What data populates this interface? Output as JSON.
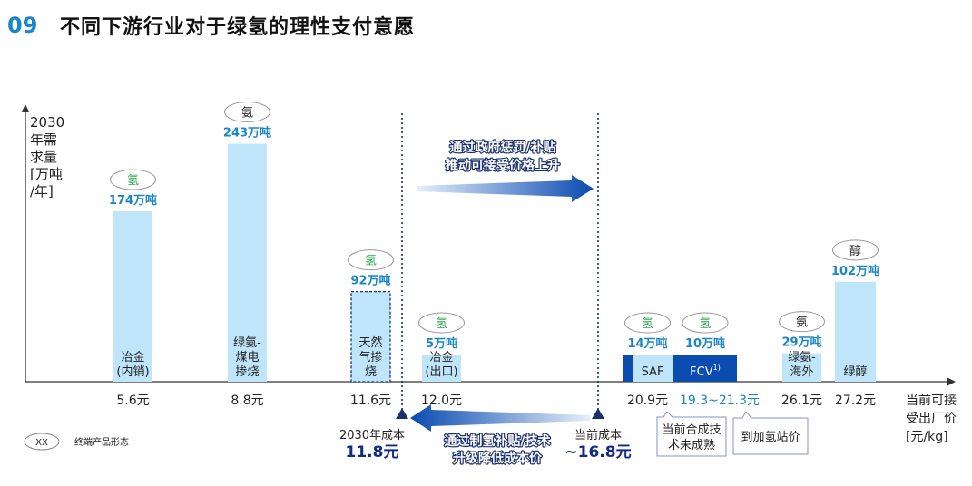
{
  "header": {
    "number": "09",
    "title": "不同下游行业对于绿氢的理性支付意愿"
  },
  "colors": {
    "bar_light": "#bfe5fb",
    "bar_dark": "#0b4cb0",
    "accent_blue": "#1a86c8",
    "green": "#2aa94a",
    "navy": "#132a86"
  },
  "chart_data": {
    "type": "bar",
    "ylabel": [
      "2030",
      "年需",
      "求量",
      "[万吨",
      "/年]"
    ],
    "xlabel": [
      "当前可接",
      "受出厂价",
      "[元/kg]"
    ],
    "bars": [
      {
        "price": 5.6,
        "price_label": "5.6元",
        "demand": 174,
        "demand_label": "174万吨",
        "form": "氢",
        "form_color": "green",
        "label": [
          "冶金",
          "(内销)"
        ],
        "style": "solid"
      },
      {
        "price": 8.8,
        "price_label": "8.8元",
        "demand": 243,
        "demand_label": "243万吨",
        "form": "氨",
        "form_color": "dark",
        "label": [
          "绿氨-",
          "煤电",
          "掺烧"
        ],
        "style": "solid"
      },
      {
        "price": 11.6,
        "price_label": "11.6元",
        "demand": 92,
        "demand_label": "92万吨",
        "form": "氢",
        "form_color": "green",
        "label": [
          "天然",
          "气掺",
          "烧"
        ],
        "style": "dashed"
      },
      {
        "price": 12.0,
        "price_label": "12.0元",
        "demand": 5,
        "demand_label": "5万吨",
        "form": "氢",
        "form_color": "green",
        "label": [
          "冶金",
          "(出口)"
        ],
        "style": "solid"
      },
      {
        "price": 20.9,
        "price_label": "20.9元",
        "demand": 14,
        "demand_label": "14万吨",
        "form": "氢",
        "form_color": "green",
        "label": [
          "SAF"
        ],
        "style": "saf"
      },
      {
        "price_range": [
          19.3,
          21.3
        ],
        "price_label": "19.3~21.3元",
        "demand": 10,
        "demand_label": "10万吨",
        "form": "氢",
        "form_color": "green",
        "label": [
          "FCV"
        ],
        "label_sup": "1)",
        "style": "fcv"
      },
      {
        "price": 26.1,
        "price_label": "26.1元",
        "demand": 29,
        "demand_label": "29万吨",
        "form": "氨",
        "form_color": "dark",
        "label": [
          "绿氨-",
          "海外"
        ],
        "style": "solid"
      },
      {
        "price": 27.2,
        "price_label": "27.2元",
        "demand": 102,
        "demand_label": "102万吨",
        "form": "醇",
        "form_color": "dark",
        "label": [
          "绿醇"
        ],
        "style": "solid"
      }
    ],
    "markers": [
      {
        "name": "2030年成本",
        "value_label": "11.8元",
        "value": 11.8
      },
      {
        "name": "当前成本",
        "value_label": "~16.8元",
        "value": 16.8
      }
    ],
    "annotations": {
      "arrow_right": [
        "通过政府惩罚/补贴",
        "推动可接受价格上升"
      ],
      "arrow_left": [
        "通过制氢补贴/技术",
        "升级降低成本价"
      ],
      "callout_1": [
        "当前合成技",
        "术未成熟"
      ],
      "callout_2": [
        "到加氢站价"
      ]
    },
    "legend": {
      "symbol": "XX",
      "text": "终端产品形态"
    }
  }
}
